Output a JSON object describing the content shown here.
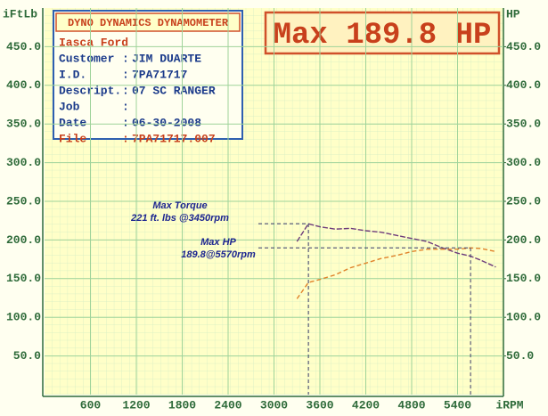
{
  "chart_data": {
    "type": "line",
    "banner": "Max 189.8 HP",
    "header": {
      "title": "DYNO DYNAMICS DYNAMOMETER",
      "shop": "Iasca Ford",
      "rows": [
        {
          "label": "Customer",
          "sep": ":",
          "value": "JIM DUARTE"
        },
        {
          "label": "I.D.",
          "sep": ":",
          "value": "7PA71717"
        },
        {
          "label": "Descript.",
          "sep": ":",
          "value": "07 SC RANGER"
        },
        {
          "label": "Job",
          "sep": ":"
        },
        {
          "label": "Date",
          "sep": ":",
          "value": "06-30-2008"
        },
        {
          "label": "File",
          "sep": ":",
          "value": "7PA71717.007"
        }
      ]
    },
    "y_label": "iFtLb",
    "y2_label": "HP",
    "x_label": "iRPM",
    "x": [
      3300,
      3450,
      3600,
      3800,
      4000,
      4200,
      4400,
      4600,
      4800,
      5000,
      5200,
      5400,
      5570,
      5700,
      5900
    ],
    "series": [
      {
        "name": "Torque",
        "color": "#6e3c7c",
        "values": [
          198,
          221,
          217,
          214,
          215,
          212,
          210,
          206,
          202,
          198,
          190,
          183,
          179,
          174,
          165
        ]
      },
      {
        "name": "HP",
        "color": "#e0822a",
        "axis": "y2",
        "values": [
          124,
          145,
          149,
          155,
          164,
          170,
          176,
          180,
          185,
          188,
          188,
          188,
          189.8,
          189,
          185
        ]
      }
    ],
    "annotations": [
      {
        "lines": [
          "Max Torque",
          "221 ft. lbs @3450rpm"
        ],
        "series": 0,
        "point": 1
      },
      {
        "lines": [
          "Max HP",
          "189.8@5570rpm"
        ],
        "series": 1,
        "point": 12
      }
    ],
    "xlim": [
      0,
      6000
    ],
    "xticks": [
      600,
      1200,
      1800,
      2400,
      3000,
      3600,
      4200,
      4800,
      5400
    ],
    "ylim": [
      0,
      500
    ],
    "yticks": [
      {
        "value": 50,
        "label": "50.0"
      },
      {
        "value": 100,
        "label": "100.0"
      },
      {
        "value": 150,
        "label": "150.0"
      },
      {
        "value": 200,
        "label": "200.0"
      },
      {
        "value": 250,
        "label": "250.0"
      },
      {
        "value": 300,
        "label": "300.0"
      },
      {
        "value": 350,
        "label": "350.0"
      },
      {
        "value": 400,
        "label": "400.0"
      },
      {
        "value": 450,
        "label": "450.0"
      }
    ],
    "y2lim": [
      0,
      500
    ],
    "y2ticks": [
      {
        "value": 50,
        "label": "50.0"
      },
      {
        "value": 100,
        "label": "100.0"
      },
      {
        "value": 150,
        "label": "150.0"
      },
      {
        "value": 200,
        "label": "200.0"
      },
      {
        "value": 250,
        "label": "250.0"
      },
      {
        "value": 300,
        "label": "300.0"
      },
      {
        "value": 350,
        "label": "350.0"
      },
      {
        "value": 400,
        "label": "400.0"
      },
      {
        "value": 450,
        "label": "450.0"
      }
    ],
    "grid": true
  }
}
